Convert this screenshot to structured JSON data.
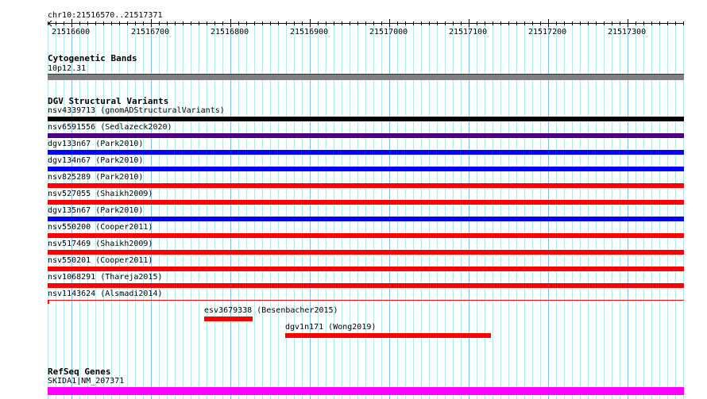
{
  "region": {
    "label": "chr10:21516570..21517371",
    "start": 21516570,
    "end": 21517371,
    "ticks": [
      "21516600",
      "21516700",
      "21516800",
      "21516900",
      "21517000",
      "21517100",
      "21517200",
      "21517300"
    ]
  },
  "cytoband": {
    "title": "Cytogenetic Bands",
    "band": "10p12.31",
    "color": "#808080"
  },
  "dgv": {
    "title": "DGV Structural Variants",
    "features": [
      {
        "label": "nsv4339713 (gnomADStructuralVariants)",
        "color": "#000000",
        "full": true
      },
      {
        "label": "nsv6591556 (Sedlazeck2020)",
        "color": "#4b0082",
        "full": true
      },
      {
        "label": "dgv133n67 (Park2010)",
        "color": "#0000ff",
        "full": true
      },
      {
        "label": "dgv134n67 (Park2010)",
        "color": "#0000ff",
        "full": true
      },
      {
        "label": "nsv825289 (Park2010)",
        "color": "#ff0000",
        "full": true
      },
      {
        "label": "nsv527055 (Shaikh2009)",
        "color": "#ff0000",
        "full": true
      },
      {
        "label": "dgv135n67 (Park2010)",
        "color": "#0000ff",
        "full": true
      },
      {
        "label": "nsv550200 (Cooper2011)",
        "color": "#ff0000",
        "full": true
      },
      {
        "label": "nsv517469 (Shaikh2009)",
        "color": "#ff0000",
        "full": true
      },
      {
        "label": "nsv550201 (Cooper2011)",
        "color": "#ff0000",
        "full": true
      },
      {
        "label": "nsv1068291 (Thareja2015)",
        "color": "#ff0000",
        "full": true
      },
      {
        "label": "nsv1143624 (Alsmadi2014)",
        "color": "#ff0000",
        "full": true,
        "thin": true
      },
      {
        "label": "esv3679338 (Besenbacher2015)",
        "color": "#ff0000",
        "start": 21516767,
        "end": 21516828
      },
      {
        "label": "dgv1n171 (Wong2019)",
        "color": "#ff0000",
        "start": 21516869,
        "end": 21517128
      }
    ]
  },
  "refseq": {
    "title": "RefSeq Genes",
    "gene": "SKIDA1|NM_207371",
    "color": "#ff00ff"
  }
}
